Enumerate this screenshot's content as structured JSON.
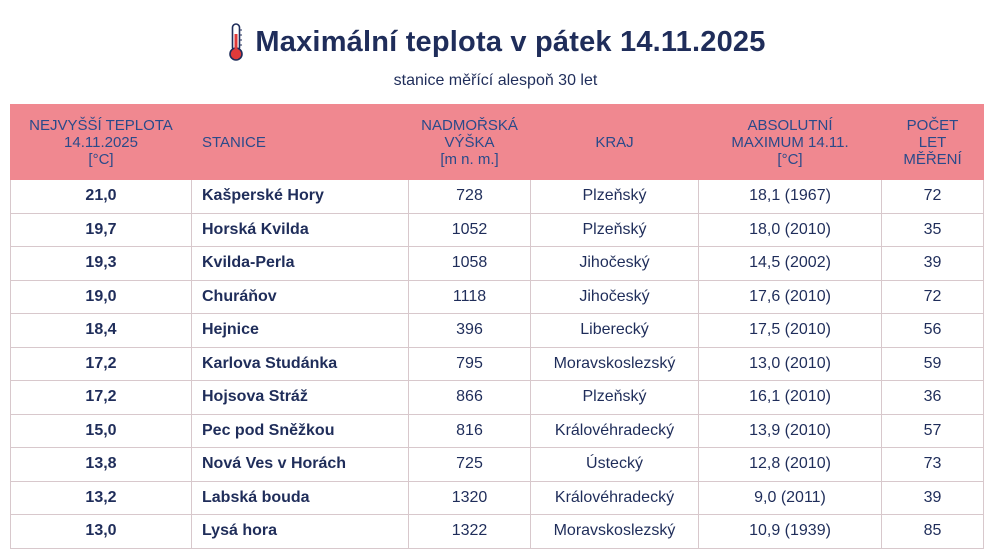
{
  "header": {
    "title": "Maximální teplota v pátek 14.11.2025",
    "subtitle": "stanice měřící alespoň 30 let",
    "icon": "thermometer-icon"
  },
  "table": {
    "columns": [
      [
        "NEJVYŠŠÍ TEPLOTA",
        "14.11.2025",
        "[°C]"
      ],
      [
        "STANICE"
      ],
      [
        "NADMOŘSKÁ",
        "VÝŠKA",
        "[m n. m.]"
      ],
      [
        "KRAJ"
      ],
      [
        "ABSOLUTNÍ",
        "MAXIMUM 14.11.",
        "[°C]"
      ],
      [
        "POČET",
        "LET",
        "MĚŘENÍ"
      ]
    ],
    "rows": [
      [
        "21,0",
        "Kašperské Hory",
        "728",
        "Plzeňský",
        "18,1 (1967)",
        "72"
      ],
      [
        "19,7",
        "Horská Kvilda",
        "1052",
        "Plzeňský",
        "18,0 (2010)",
        "35"
      ],
      [
        "19,3",
        "Kvilda-Perla",
        "1058",
        "Jihočeský",
        "14,5 (2002)",
        "39"
      ],
      [
        "19,0",
        "Churáňov",
        "1118",
        "Jihočeský",
        "17,6 (2010)",
        "72"
      ],
      [
        "18,4",
        "Hejnice",
        "396",
        "Liberecký",
        "17,5 (2010)",
        "56"
      ],
      [
        "17,2",
        "Karlova Studánka",
        "795",
        "Moravskoslezský",
        "13,0 (2010)",
        "59"
      ],
      [
        "17,2",
        "Hojsova Stráž",
        "866",
        "Plzeňský",
        "16,1 (2010)",
        "36"
      ],
      [
        "15,0",
        "Pec pod Sněžkou",
        "816",
        "Královéhradecký",
        "13,9 (2010)",
        "57"
      ],
      [
        "13,8",
        "Nová Ves v Horách",
        "725",
        "Ústecký",
        "12,8 (2010)",
        "73"
      ],
      [
        "13,2",
        "Labská bouda",
        "1320",
        "Královéhradecký",
        "9,0 (2011)",
        "39"
      ],
      [
        "13,0",
        "Lysá hora",
        "1322",
        "Moravskoslezský",
        "10,9 (1939)",
        "85"
      ]
    ]
  },
  "colors": {
    "header_bg": "#f08890",
    "header_text": "#2a4a8a",
    "text": "#1f2d5a",
    "grid": "#d8c8cc",
    "thermometer": "#e03a3a"
  }
}
